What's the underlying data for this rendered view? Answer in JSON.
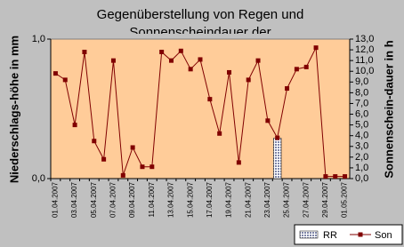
{
  "chart_data": {
    "type": "bar-line",
    "title": [
      "Gegenüberstellung von Regen und",
      "Sonnenscheindauer der"
    ],
    "ylabel": "Niederschlags-höhe in mm",
    "y2label": "Sonnenschein-dauer in h",
    "categories": [
      "01.04.2007",
      null,
      "03.04.2007",
      null,
      "05.04.2007",
      null,
      "07.04.2007",
      null,
      "09.04.2007",
      null,
      "11.04.2007",
      null,
      "13.04.2007",
      null,
      "15.04.2007",
      null,
      "17.04.2007",
      null,
      "19.04.2007",
      null,
      "21.04.2007",
      null,
      "23.04.2007",
      null,
      "25.04.2007",
      null,
      "27.04.2007",
      null,
      "29.04.2007",
      null,
      "01.05.2007"
    ],
    "series": [
      {
        "name": "RR",
        "type": "bar",
        "color": "#7f86a8",
        "values": [
          0,
          0,
          0,
          0,
          0,
          0,
          0,
          0,
          0,
          0,
          0,
          0,
          0,
          0,
          0,
          0,
          0,
          0,
          0,
          0,
          0,
          0,
          0,
          0.29,
          0,
          0,
          0,
          0,
          0,
          0,
          0
        ]
      },
      {
        "name": "Son",
        "type": "line",
        "axis": "y2",
        "color": "#800000",
        "values": [
          9.8,
          9.2,
          5.0,
          11.8,
          3.5,
          1.8,
          11.0,
          0.3,
          2.9,
          1.1,
          1.1,
          11.8,
          11.0,
          11.9,
          10.2,
          11.1,
          7.4,
          4.2,
          9.9,
          1.5,
          9.2,
          11.0,
          5.4,
          3.8,
          8.4,
          10.2,
          10.4,
          12.2,
          0.2,
          0.2,
          0.2
        ]
      }
    ],
    "ylim": [
      0,
      1
    ],
    "yticks": [
      {
        "value": 0,
        "label": "0,0"
      },
      {
        "value": 1,
        "label": "1,0"
      }
    ],
    "y2lim": [
      0,
      13
    ],
    "y2ticks": [
      {
        "value": 0,
        "label": "0,0"
      },
      {
        "value": 1,
        "label": "1,0"
      },
      {
        "value": 2,
        "label": "2,0"
      },
      {
        "value": 3,
        "label": "3,0"
      },
      {
        "value": 4,
        "label": "4,0"
      },
      {
        "value": 5,
        "label": "5,0"
      },
      {
        "value": 6,
        "label": "6,0"
      },
      {
        "value": 7,
        "label": "7,0"
      },
      {
        "value": 8,
        "label": "8,0"
      },
      {
        "value": 9,
        "label": "9,0"
      },
      {
        "value": 10,
        "label": "10,0"
      },
      {
        "value": 11,
        "label": "11,0"
      },
      {
        "value": 12,
        "label": "12,0"
      },
      {
        "value": 13,
        "label": "13,0"
      }
    ],
    "grid": false,
    "legend": "bottom-right",
    "background": "#ffcc99"
  }
}
